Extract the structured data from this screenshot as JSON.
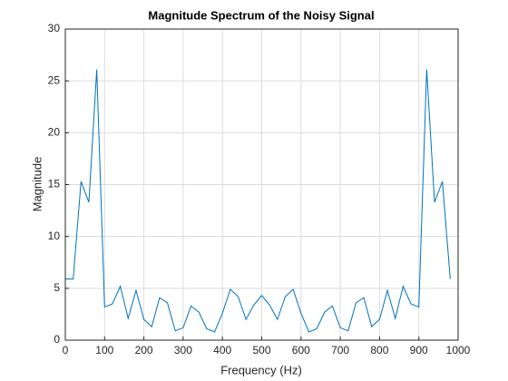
{
  "chart_data": {
    "type": "line",
    "title": "Magnitude Spectrum of the Noisy Signal",
    "xlabel": "Frequency (Hz)",
    "ylabel": "Magnitude",
    "x": [
      0,
      20,
      40,
      60,
      80,
      100,
      120,
      140,
      160,
      180,
      200,
      220,
      240,
      260,
      280,
      300,
      320,
      340,
      360,
      380,
      400,
      420,
      440,
      460,
      480,
      500,
      520,
      540,
      560,
      580,
      600,
      620,
      640,
      660,
      680,
      700,
      720,
      740,
      760,
      780,
      800,
      820,
      840,
      860,
      880,
      900,
      920,
      940,
      960,
      980
    ],
    "series": [
      {
        "name": "Magnitude",
        "color": "#0072bd",
        "values": [
          5.9,
          5.9,
          15.3,
          13.3,
          26.1,
          3.2,
          3.5,
          5.2,
          2.1,
          4.8,
          2.0,
          1.3,
          4.1,
          3.6,
          0.9,
          1.2,
          3.3,
          2.7,
          1.1,
          0.8,
          2.6,
          4.9,
          4.2,
          2.0,
          3.4,
          4.3,
          3.4,
          2.0,
          4.2,
          4.9,
          2.6,
          0.8,
          1.1,
          2.7,
          3.3,
          1.2,
          0.9,
          3.6,
          4.1,
          1.3,
          2.0,
          4.8,
          2.1,
          5.2,
          3.5,
          3.2,
          26.1,
          13.3,
          15.3,
          5.9
        ]
      }
    ],
    "xlim": [
      0,
      1000
    ],
    "xticks": [
      0,
      100,
      200,
      300,
      400,
      500,
      600,
      700,
      800,
      900,
      1000
    ],
    "ylim": [
      0,
      30
    ],
    "yticks": [
      0,
      5,
      10,
      15,
      20,
      25,
      30
    ],
    "grid": true
  }
}
